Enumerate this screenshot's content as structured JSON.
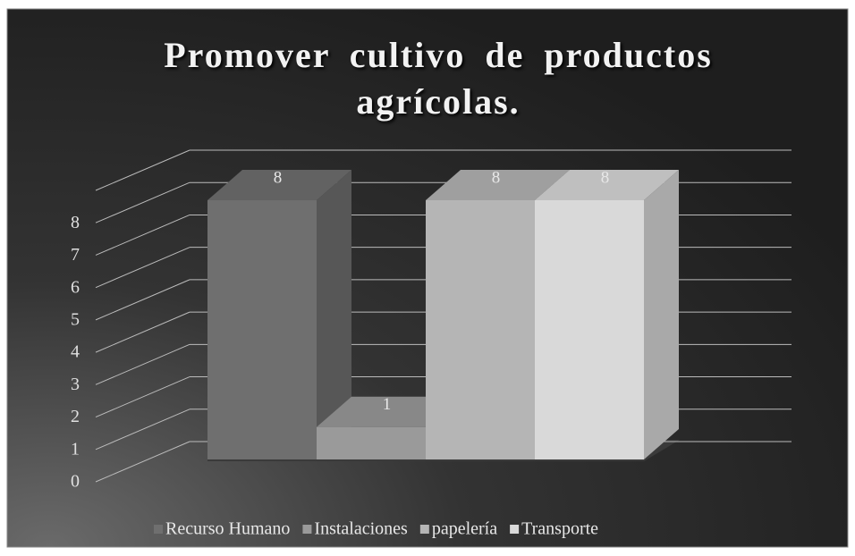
{
  "chart_data": {
    "type": "bar3d",
    "title": "Promover cultivo de productos agrícolas.",
    "series": [
      {
        "name": "Recurso Humano",
        "color": "#6f6f6f",
        "values": [
          8
        ]
      },
      {
        "name": "Instalaciones",
        "color": "#9a9a9a",
        "values": [
          1
        ]
      },
      {
        "name": "papelería",
        "color": "#b5b5b5",
        "values": [
          8
        ]
      },
      {
        "name": "Transporte",
        "color": "#d9d9d9",
        "values": [
          8
        ]
      }
    ],
    "ylim": [
      0,
      9
    ],
    "yticks": [
      0,
      1,
      2,
      3,
      4,
      5,
      6,
      7,
      8
    ],
    "grid": true,
    "legend": "bottom"
  }
}
